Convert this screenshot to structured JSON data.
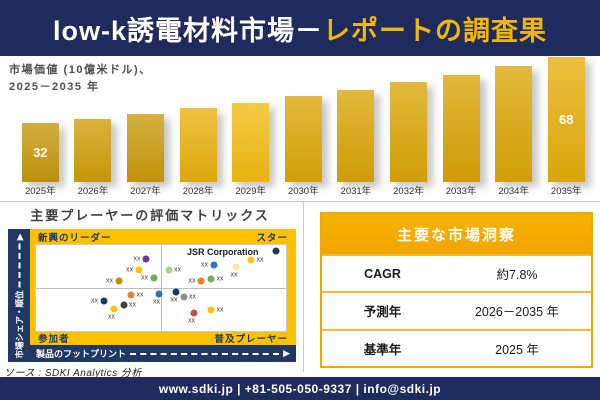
{
  "header": {
    "title_white": "low-k誘電材料市場－",
    "title_gold": "レポートの調査果"
  },
  "chart_data": [
    {
      "type": "bar",
      "title": "市場価値 (10億米ドル)、2025－2035 年",
      "title_line1": "市場価値 (10億米ドル)、",
      "title_line2": "2025－2035 年",
      "xlabel": "",
      "ylabel": "10億米ドル",
      "ylim": [
        0,
        72
      ],
      "categories": [
        "2025年",
        "2026年",
        "2027年",
        "2028年",
        "2029年",
        "2030年",
        "2031年",
        "2032年",
        "2033年",
        "2034年",
        "2035年"
      ],
      "values": [
        32,
        34.5,
        37.2,
        40.1,
        43.2,
        46.6,
        50.2,
        54.1,
        58.3,
        62.9,
        68
      ],
      "labeled_indices": [
        0,
        10
      ],
      "value_label_first": "32",
      "value_label_last": "68",
      "bar_colors": [
        "#C6960C",
        "#CF9D09",
        "#CA9A0A",
        "#E9B00C",
        "#F3BB12",
        "#DDA707",
        "#DAA406",
        "#DBA506",
        "#D9A306",
        "#DCA607",
        "#E6AE0A"
      ]
    },
    {
      "type": "scatter",
      "title": "主要プレーヤーの評価マトリックス",
      "quadrants": {
        "top_left": "新興のリーダー",
        "top_right": "スター",
        "bottom_left": "参加者",
        "bottom_right": "普及プレーヤー"
      },
      "y_axis_label": "市場シェア・順位",
      "x_axis_label": "製品のフットプリント",
      "annotation": "JSR Corporation",
      "default_point_label": "xx",
      "points": [
        {
          "x": 44,
          "y": 16,
          "color": "#7030A0",
          "label_side": "left"
        },
        {
          "x": 41,
          "y": 29,
          "color": "#FFC000",
          "label_side": "left"
        },
        {
          "x": 33,
          "y": 42,
          "color": "#BF9000",
          "label_side": "left"
        },
        {
          "x": 47,
          "y": 38,
          "color": "#70AD47",
          "label_side": "left"
        },
        {
          "x": 53,
          "y": 29,
          "color": "#A9D18E",
          "label_side": "right"
        },
        {
          "x": 38,
          "y": 58,
          "color": "#ED7D31",
          "label_side": "right"
        },
        {
          "x": 49,
          "y": 57,
          "color": "#2E75B6",
          "label_side": "below"
        },
        {
          "x": 27,
          "y": 65,
          "color": "#1F3864",
          "label_side": "left"
        },
        {
          "x": 35,
          "y": 70,
          "color": "#404040",
          "label_side": "right"
        },
        {
          "x": 31,
          "y": 74,
          "color": "#FFC000",
          "label_side": "below"
        },
        {
          "x": 96,
          "y": 7,
          "color": "#1F3864",
          "label_side": "none"
        },
        {
          "x": 86,
          "y": 18,
          "color": "#FFC000",
          "label_side": "right"
        },
        {
          "x": 80,
          "y": 25,
          "color": "#FFE699",
          "label_side": "below"
        },
        {
          "x": 71,
          "y": 23,
          "color": "#2E75B6",
          "label_side": "left"
        },
        {
          "x": 70,
          "y": 39,
          "color": "#70AD47",
          "label_side": "right"
        },
        {
          "x": 66,
          "y": 42,
          "color": "#ED7D31",
          "label_side": "left"
        },
        {
          "x": 56,
          "y": 55,
          "color": "#1F3864",
          "label_side": "below"
        },
        {
          "x": 59,
          "y": 61,
          "color": "#909090",
          "label_side": "right"
        },
        {
          "x": 63,
          "y": 79,
          "color": "#C0504D",
          "label_side": "below"
        },
        {
          "x": 70,
          "y": 75,
          "color": "#FFC000",
          "label_side": "right"
        }
      ]
    }
  ],
  "insights": {
    "title": "主要な市場洞察",
    "rows": [
      {
        "label": "CAGR",
        "value": "約7.8%"
      },
      {
        "label": "予測年",
        "value": "2026－2035 年"
      },
      {
        "label": "基準年",
        "value": "2025 年"
      }
    ]
  },
  "source": {
    "text": "ソース : SDKI Analytics 分析"
  },
  "footer": {
    "text": "www.sdki.jp | +81-505-050-9337 | info@sdki.jp"
  },
  "colors": {
    "navy": "#1F2B5C",
    "matrix_navy": "#1F3864",
    "gold_accent": "#F2B705",
    "matrix_gold": "#FFC000",
    "table_gold": "#F0A800"
  }
}
